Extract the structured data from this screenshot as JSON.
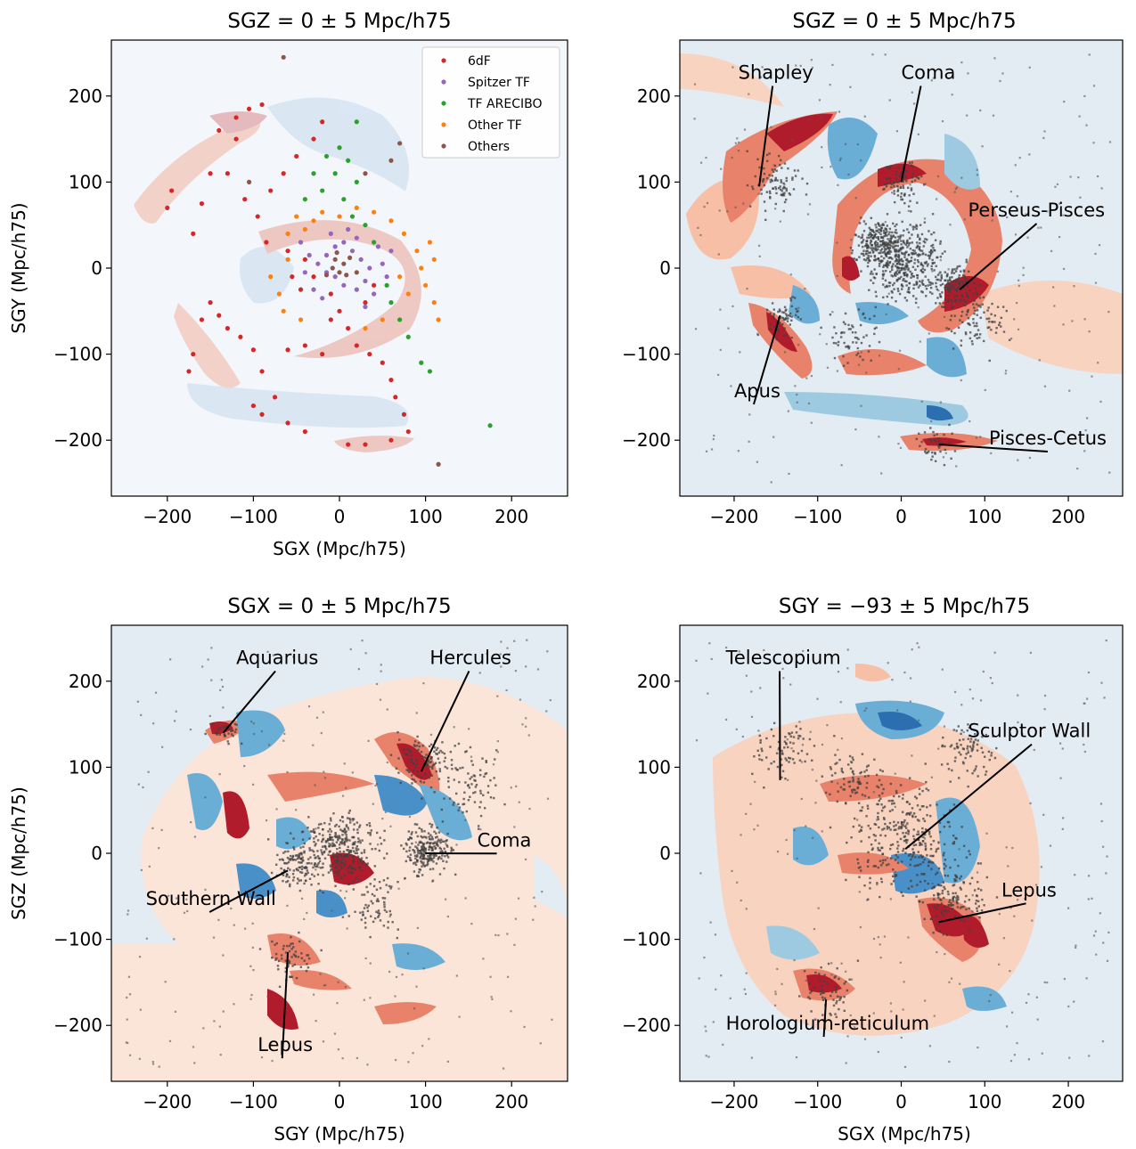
{
  "colors": {
    "background": "#ffffff",
    "field_base": "#e8eef5",
    "overdensity_light": "#f7cdb6",
    "overdensity_mid": "#e47a62",
    "overdensity_dark": "#b11a2a",
    "underdensity_light": "#c6dbef",
    "underdensity_mid": "#6aaed6",
    "underdensity_dark": "#2b6fb0",
    "galaxy_points": "#404040",
    "series_6dF": "#d62728",
    "series_spitzer": "#9467bd",
    "series_arecibo": "#2ca02c",
    "series_othertf": "#ff7f0e",
    "series_others": "#8c564b"
  },
  "chart_data": [
    {
      "type": "scatter",
      "title": "SGZ = 0 ± 5 Mpc/h75",
      "xlabel": "SGX (Mpc/h75)",
      "ylabel": "SGY (Mpc/h75)",
      "xlim": [
        -265,
        265
      ],
      "ylim": [
        -265,
        265
      ],
      "xticks": [
        -200,
        -100,
        0,
        100,
        200
      ],
      "yticks": [
        -200,
        -100,
        0,
        100,
        200
      ],
      "xtick_labels": [
        "−200",
        "−100",
        "0",
        "100",
        "200"
      ],
      "ytick_labels": [
        "−200",
        "−100",
        "0",
        "100",
        "200"
      ],
      "legend": {
        "placement": "top-right"
      },
      "background": "density-contours",
      "series": [
        {
          "name": "6dF",
          "color": "#d62728",
          "points": [
            [
              -170,
              40
            ],
            [
              -160,
              75
            ],
            [
              -150,
              110
            ],
            [
              -140,
              160
            ],
            [
              -120,
              175
            ],
            [
              -105,
              185
            ],
            [
              -90,
              190
            ],
            [
              -120,
              150
            ],
            [
              -130,
              110
            ],
            [
              -110,
              80
            ],
            [
              -95,
              60
            ],
            [
              -85,
              30
            ],
            [
              -60,
              20
            ],
            [
              -40,
              10
            ],
            [
              -30,
              -10
            ],
            [
              -10,
              -30
            ],
            [
              0,
              -50
            ],
            [
              10,
              -70
            ],
            [
              20,
              -90
            ],
            [
              35,
              -100
            ],
            [
              50,
              -110
            ],
            [
              60,
              -130
            ],
            [
              65,
              -150
            ],
            [
              75,
              -170
            ],
            [
              80,
              -190
            ],
            [
              60,
              -200
            ],
            [
              30,
              -205
            ],
            [
              10,
              -205
            ],
            [
              -40,
              -190
            ],
            [
              -60,
              -180
            ],
            [
              -75,
              -150
            ],
            [
              -90,
              -120
            ],
            [
              -100,
              -95
            ],
            [
              -115,
              -80
            ],
            [
              -130,
              -70
            ],
            [
              -140,
              -55
            ],
            [
              -150,
              -40
            ],
            [
              -160,
              -60
            ],
            [
              -170,
              -100
            ],
            [
              -175,
              -120
            ],
            [
              -100,
              -160
            ],
            [
              -90,
              -170
            ],
            [
              -60,
              -95
            ],
            [
              -40,
              -90
            ],
            [
              -20,
              -100
            ],
            [
              -10,
              -60
            ],
            [
              30,
              -40
            ],
            [
              40,
              -20
            ],
            [
              -55,
              -10
            ],
            [
              -45,
              -25
            ],
            [
              -200,
              70
            ],
            [
              -195,
              90
            ],
            [
              -80,
              90
            ],
            [
              -65,
              110
            ],
            [
              -50,
              130
            ],
            [
              -30,
              150
            ],
            [
              -20,
              170
            ]
          ]
        },
        {
          "name": "Spitzer TF",
          "color": "#9467bd",
          "points": [
            [
              -15,
              15
            ],
            [
              -5,
              25
            ],
            [
              5,
              30
            ],
            [
              15,
              20
            ],
            [
              25,
              10
            ],
            [
              35,
              0
            ],
            [
              30,
              -15
            ],
            [
              20,
              -25
            ],
            [
              5,
              -20
            ],
            [
              -5,
              -10
            ],
            [
              -15,
              -5
            ],
            [
              -25,
              5
            ],
            [
              -35,
              15
            ],
            [
              -40,
              -5
            ],
            [
              45,
              25
            ],
            [
              50,
              5
            ],
            [
              55,
              -10
            ],
            [
              40,
              -30
            ],
            [
              -30,
              -25
            ],
            [
              10,
              45
            ],
            [
              -10,
              40
            ],
            [
              20,
              35
            ],
            [
              -45,
              30
            ],
            [
              60,
              20
            ],
            [
              -20,
              -35
            ],
            [
              30,
              -45
            ]
          ]
        },
        {
          "name": "TF ARECIBO",
          "color": "#2ca02c",
          "points": [
            [
              -30,
              110
            ],
            [
              -15,
              130
            ],
            [
              0,
              140
            ],
            [
              10,
              125
            ],
            [
              20,
              100
            ],
            [
              -20,
              90
            ],
            [
              -40,
              80
            ],
            [
              5,
              80
            ],
            [
              15,
              60
            ],
            [
              30,
              50
            ],
            [
              40,
              30
            ],
            [
              55,
              -20
            ],
            [
              60,
              -40
            ],
            [
              70,
              -60
            ],
            [
              80,
              -80
            ],
            [
              95,
              -110
            ],
            [
              105,
              -120
            ],
            [
              175,
              -183
            ],
            [
              20,
              170
            ],
            [
              -5,
              110
            ]
          ]
        },
        {
          "name": "Other TF",
          "color": "#ff7f0e",
          "points": [
            [
              -60,
              40
            ],
            [
              -50,
              60
            ],
            [
              -40,
              45
            ],
            [
              -30,
              55
            ],
            [
              -20,
              65
            ],
            [
              0,
              60
            ],
            [
              20,
              70
            ],
            [
              40,
              65
            ],
            [
              60,
              55
            ],
            [
              75,
              40
            ],
            [
              90,
              20
            ],
            [
              95,
              0
            ],
            [
              100,
              -20
            ],
            [
              110,
              -40
            ],
            [
              115,
              -60
            ],
            [
              -70,
              -30
            ],
            [
              -65,
              -50
            ],
            [
              -60,
              10
            ],
            [
              -80,
              -10
            ],
            [
              70,
              -10
            ],
            [
              80,
              -30
            ],
            [
              50,
              -60
            ],
            [
              30,
              -70
            ],
            [
              -45,
              -60
            ],
            [
              105,
              30
            ],
            [
              110,
              10
            ]
          ]
        },
        {
          "name": "Others",
          "color": "#8c564b",
          "points": [
            [
              -65,
              245
            ],
            [
              -5,
              10
            ],
            [
              5,
              5
            ],
            [
              0,
              -5
            ],
            [
              -8,
              0
            ],
            [
              8,
              -8
            ],
            [
              -3,
              18
            ],
            [
              12,
              12
            ],
            [
              -15,
              -8
            ],
            [
              20,
              -5
            ],
            [
              60,
              125
            ],
            [
              70,
              145
            ],
            [
              115,
              -228
            ],
            [
              -105,
              100
            ],
            [
              30,
              110
            ]
          ]
        }
      ],
      "annotations": []
    },
    {
      "type": "scatter",
      "title": "SGZ = 0 ± 5 Mpc/h75",
      "xlabel": "",
      "ylabel": "",
      "xlim": [
        -265,
        265
      ],
      "ylim": [
        -265,
        265
      ],
      "xticks": [
        -200,
        -100,
        0,
        100,
        200
      ],
      "yticks": [
        -200,
        -100,
        0,
        100,
        200
      ],
      "xtick_labels": [
        "−200",
        "−100",
        "0",
        "100",
        "200"
      ],
      "ytick_labels": [
        "−200",
        "−100",
        "0",
        "100",
        "200"
      ],
      "background": "density-contours",
      "annotations": [
        {
          "text": "Shapley",
          "text_at": [
            -195,
            220
          ],
          "point": [
            -170,
            95
          ]
        },
        {
          "text": "Coma",
          "text_at": [
            0,
            220
          ],
          "point": [
            0,
            100
          ]
        },
        {
          "text": "Perseus-Pisces",
          "text_at": [
            80,
            60
          ],
          "point": [
            70,
            -25
          ]
        },
        {
          "text": "Apus",
          "text_at": [
            -200,
            -150
          ],
          "point": [
            -145,
            -55
          ]
        },
        {
          "text": "Pisces-Cetus",
          "text_at": [
            105,
            -205
          ],
          "point": [
            45,
            -205
          ]
        }
      ]
    },
    {
      "type": "scatter",
      "title": "SGX = 0 ± 5  Mpc/h75",
      "xlabel": "SGY (Mpc/h75)",
      "ylabel": "SGZ (Mpc/h75)",
      "xlim": [
        -265,
        265
      ],
      "ylim": [
        -265,
        265
      ],
      "xticks": [
        -200,
        -100,
        0,
        100,
        200
      ],
      "yticks": [
        -200,
        -100,
        0,
        100,
        200
      ],
      "xtick_labels": [
        "−200",
        "−100",
        "0",
        "100",
        "200"
      ],
      "ytick_labels": [
        "−200",
        "−100",
        "0",
        "100",
        "200"
      ],
      "background": "density-contours",
      "annotations": [
        {
          "text": "Aquarius",
          "text_at": [
            -120,
            220
          ],
          "point": [
            -135,
            140
          ]
        },
        {
          "text": "Hercules",
          "text_at": [
            105,
            220
          ],
          "point": [
            95,
            95
          ]
        },
        {
          "text": "Coma",
          "text_at": [
            160,
            8
          ],
          "point": [
            100,
            0
          ]
        },
        {
          "text": "Southern Wall",
          "text_at": [
            -225,
            -60
          ],
          "point": [
            -60,
            -20
          ]
        },
        {
          "text": "Lepus",
          "text_at": [
            -95,
            -230
          ],
          "point": [
            -60,
            -115
          ]
        }
      ]
    },
    {
      "type": "scatter",
      "title": "SGY = −93 ± 5 Mpc/h75",
      "xlabel": "SGX (Mpc/h75)",
      "ylabel": "",
      "xlim": [
        -265,
        265
      ],
      "ylim": [
        -265,
        265
      ],
      "xticks": [
        -200,
        -100,
        0,
        100,
        200
      ],
      "yticks": [
        -200,
        -100,
        0,
        100,
        200
      ],
      "xtick_labels": [
        "−200",
        "−100",
        "0",
        "100",
        "200"
      ],
      "ytick_labels": [
        "−200",
        "−100",
        "0",
        "100",
        "200"
      ],
      "background": "density-contours",
      "annotations": [
        {
          "text": "Telescopium",
          "text_at": [
            -210,
            220
          ],
          "point": [
            -145,
            85
          ]
        },
        {
          "text": "Sculptor Wall",
          "text_at": [
            80,
            135
          ],
          "point": [
            5,
            5
          ]
        },
        {
          "text": "Lepus",
          "text_at": [
            120,
            -50
          ],
          "point": [
            45,
            -80
          ]
        },
        {
          "text": "Horologium-reticulum",
          "text_at": [
            -210,
            -205
          ],
          "point": [
            -90,
            -170
          ]
        }
      ]
    }
  ]
}
